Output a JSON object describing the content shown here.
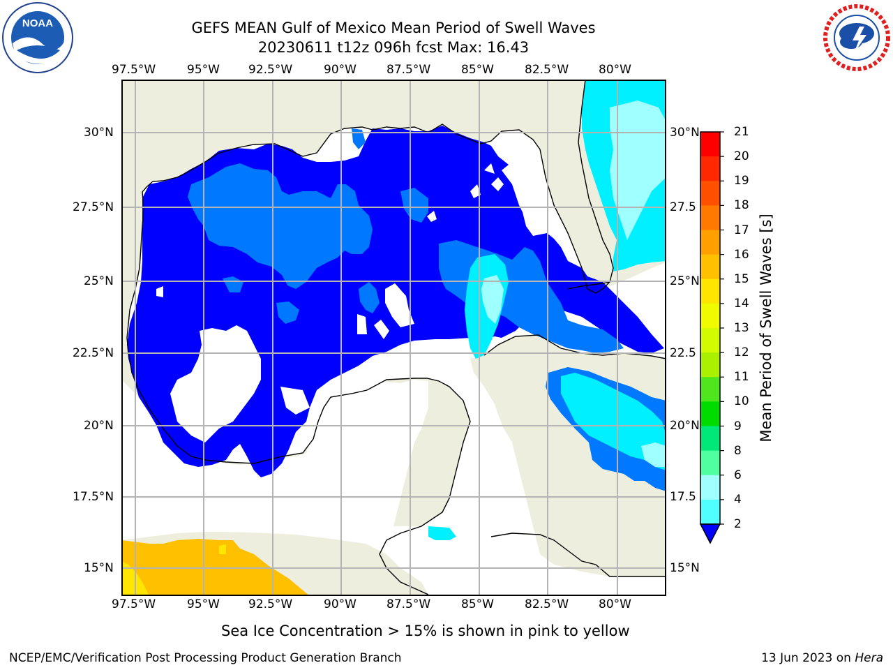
{
  "header": {
    "title": "GEFS MEAN Gulf of Mexico Mean Period of Swell Waves",
    "subtitle": "20230611 t12z 096h fcst   Max: 16.43"
  },
  "map": {
    "lon_labels": [
      "97.5°W",
      "95°W",
      "92.5°W",
      "90°W",
      "87.5°W",
      "85°W",
      "82.5°W",
      "80°W"
    ],
    "lat_labels_left": [
      "30°N",
      "27.5°N",
      "25°N",
      "22.5°N",
      "20°N",
      "17.5°N",
      "15°N"
    ],
    "lat_labels_right": [
      "30°N",
      "27.5",
      "25°N",
      "22.5",
      "20°N",
      "17.5",
      "15°N"
    ],
    "colors": {
      "land": "#eeeede",
      "water_none": "#ffffff",
      "grid": "#b4b4b4"
    }
  },
  "colorbar": {
    "title": "Mean Period of Swell Waves [s]",
    "ticks": [
      "21",
      "20",
      "19",
      "18",
      "17",
      "16",
      "15",
      "14",
      "13",
      "12",
      "11",
      "10",
      "9",
      "8",
      "6",
      "4",
      "2"
    ],
    "colors": [
      "#ff0000",
      "#ff2800",
      "#ff5000",
      "#ff7800",
      "#ffa000",
      "#ffc000",
      "#ffe600",
      "#f0fa00",
      "#d2fa00",
      "#aaf000",
      "#50e61e",
      "#00dc00",
      "#00e878",
      "#50ffa0",
      "#a0ffff",
      "#50ffff",
      "#00f0ff",
      "#0078ff",
      "#0000ff"
    ]
  },
  "caption": "Sea Ice Concentration > 15% is shown in pink to yellow",
  "footer": {
    "left": "NCEP/EMC/Verification Post Processing Product Generation Branch",
    "right_date": "13 Jun 2023 on ",
    "right_host": "Hera"
  },
  "logos": {
    "noaa_text": "NOAA",
    "noaa_ring": "NATIONAL OCEANIC AND ATMOSPHERIC ADMINISTRATION",
    "nws_ring": "NATIONAL WEATHER SERVICE"
  }
}
